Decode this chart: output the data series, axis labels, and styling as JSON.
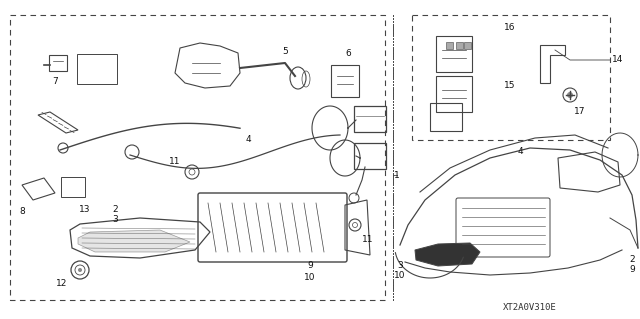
{
  "bg_color": "#ffffff",
  "fig_width": 6.4,
  "fig_height": 3.19,
  "dpi": 100,
  "diagram_code": "XT2A0V310E",
  "line_color": "#444444",
  "label_fontsize": 6.5,
  "label_color": "#111111"
}
